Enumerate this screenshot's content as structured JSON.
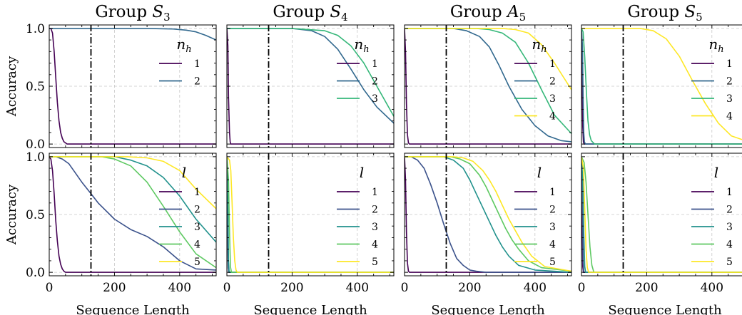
{
  "colors": {
    "c1": "#440154",
    "c2_of2": "#31688e",
    "c2": "#3b528b",
    "c3_of3": "#35b779",
    "c3": "#21918c",
    "c4": "#5ec962",
    "c5": "#fde725",
    "teal2": "#2f6e8f",
    "green3": "#3dbb74",
    "yellow4": "#fde725",
    "vline": "#000000",
    "grid": "#c8c8c8"
  },
  "vline_x": 128,
  "xlabel": "Sequence Length",
  "ylabel": "Accuracy",
  "chart_data": [
    {
      "type": "line",
      "title": "Group S",
      "title_sub": "3",
      "legend_title": "n",
      "legend_title_sub": "h",
      "xlim": [
        0,
        512
      ],
      "ylim": [
        -0.03,
        1.03
      ],
      "series": [
        {
          "name": "1",
          "color": "#440154",
          "x": [
            0,
            5,
            10,
            15,
            20,
            25,
            30,
            35,
            40,
            45,
            50,
            55,
            60,
            512
          ],
          "y": [
            1.0,
            1.0,
            0.96,
            0.8,
            0.58,
            0.36,
            0.2,
            0.1,
            0.05,
            0.02,
            0.01,
            0.0,
            0.0,
            0.0
          ]
        },
        {
          "name": "2",
          "color": "#31688e",
          "x": [
            0,
            100,
            200,
            300,
            380,
            420,
            450,
            480,
            512
          ],
          "y": [
            1.0,
            1.0,
            1.0,
            1.0,
            0.995,
            0.985,
            0.97,
            0.94,
            0.9
          ]
        }
      ]
    },
    {
      "type": "line",
      "title": "Group S",
      "title_sub": "4",
      "legend_title": "n",
      "legend_title_sub": "h",
      "xlim": [
        0,
        512
      ],
      "ylim": [
        -0.03,
        1.03
      ],
      "series": [
        {
          "name": "1",
          "color": "#440154",
          "x": [
            0,
            3,
            5,
            8,
            10,
            12,
            15,
            512
          ],
          "y": [
            1.0,
            0.85,
            0.4,
            0.1,
            0.02,
            0.0,
            0.0,
            0.0
          ]
        },
        {
          "name": "2",
          "color": "#31688e",
          "x": [
            0,
            200,
            260,
            300,
            340,
            380,
            420,
            460,
            512
          ],
          "y": [
            1.0,
            1.0,
            0.98,
            0.93,
            0.82,
            0.65,
            0.47,
            0.32,
            0.18
          ]
        },
        {
          "name": "3",
          "color": "#35b779",
          "x": [
            0,
            200,
            300,
            340,
            380,
            420,
            460,
            512
          ],
          "y": [
            1.0,
            1.0,
            0.98,
            0.94,
            0.85,
            0.7,
            0.5,
            0.24
          ]
        }
      ]
    },
    {
      "type": "line",
      "title": "Group A",
      "title_sub": "5",
      "legend_title": "n",
      "legend_title_sub": "h",
      "xlim": [
        0,
        512
      ],
      "ylim": [
        -0.03,
        1.03
      ],
      "series": [
        {
          "name": "1",
          "color": "#440154",
          "x": [
            0,
            3,
            6,
            9,
            12,
            15,
            512
          ],
          "y": [
            1.0,
            0.8,
            0.35,
            0.08,
            0.01,
            0.0,
            0.0
          ]
        },
        {
          "name": "2",
          "color": "#31688e",
          "x": [
            0,
            150,
            190,
            230,
            260,
            290,
            320,
            360,
            400,
            440,
            480,
            512
          ],
          "y": [
            1.0,
            1.0,
            0.98,
            0.93,
            0.84,
            0.68,
            0.5,
            0.3,
            0.16,
            0.07,
            0.03,
            0.02
          ]
        },
        {
          "name": "3",
          "color": "#35b779",
          "x": [
            0,
            220,
            260,
            300,
            340,
            380,
            420,
            460,
            512
          ],
          "y": [
            1.0,
            1.0,
            0.99,
            0.96,
            0.88,
            0.7,
            0.47,
            0.25,
            0.09
          ]
        },
        {
          "name": "4",
          "color": "#fde725",
          "x": [
            0,
            300,
            340,
            380,
            420,
            460,
            512
          ],
          "y": [
            1.0,
            1.0,
            0.99,
            0.96,
            0.86,
            0.7,
            0.47
          ]
        }
      ]
    },
    {
      "type": "line",
      "title": "Group S",
      "title_sub": "5",
      "legend_title": "n",
      "legend_title_sub": "h",
      "xlim": [
        0,
        512
      ],
      "ylim": [
        -0.03,
        1.03
      ],
      "series": [
        {
          "name": "1",
          "color": "#440154",
          "x": [
            0,
            2,
            4,
            6,
            8,
            10,
            512
          ],
          "y": [
            1.0,
            0.6,
            0.15,
            0.02,
            0.0,
            0.0,
            0.0
          ]
        },
        {
          "name": "2",
          "color": "#31688e",
          "x": [
            0,
            3,
            5,
            7,
            9,
            12,
            512
          ],
          "y": [
            1.0,
            0.85,
            0.4,
            0.1,
            0.02,
            0.0,
            0.0
          ]
        },
        {
          "name": "3",
          "color": "#35b779",
          "x": [
            0,
            5,
            10,
            15,
            20,
            25,
            30,
            40,
            512
          ],
          "y": [
            1.0,
            0.97,
            0.75,
            0.45,
            0.2,
            0.08,
            0.03,
            0.0,
            0.0
          ]
        },
        {
          "name": "4",
          "color": "#fde725",
          "x": [
            0,
            180,
            220,
            260,
            300,
            340,
            380,
            420,
            460,
            512
          ],
          "y": [
            1.0,
            1.0,
            0.98,
            0.91,
            0.76,
            0.55,
            0.35,
            0.18,
            0.07,
            0.02
          ]
        }
      ]
    },
    {
      "type": "line",
      "legend_title": "l",
      "xlim": [
        0,
        512
      ],
      "ylim": [
        -0.03,
        1.03
      ],
      "xticks": [
        0,
        200,
        400
      ],
      "series": [
        {
          "name": "1",
          "color": "#440154",
          "x": [
            0,
            5,
            10,
            15,
            20,
            25,
            30,
            35,
            40,
            45,
            50,
            55,
            60,
            512
          ],
          "y": [
            1.0,
            0.98,
            0.88,
            0.68,
            0.45,
            0.27,
            0.14,
            0.07,
            0.03,
            0.01,
            0.0,
            0.0,
            0.0,
            0.0
          ]
        },
        {
          "name": "2",
          "color": "#3b528b",
          "x": [
            0,
            20,
            40,
            60,
            80,
            100,
            128,
            150,
            200,
            250,
            300,
            350,
            400,
            450,
            512
          ],
          "y": [
            1.0,
            1.0,
            0.98,
            0.94,
            0.86,
            0.78,
            0.68,
            0.6,
            0.46,
            0.37,
            0.31,
            0.22,
            0.1,
            0.03,
            0.02
          ]
        },
        {
          "name": "3",
          "color": "#21918c",
          "x": [
            0,
            200,
            250,
            300,
            350,
            400,
            450,
            512
          ],
          "y": [
            1.0,
            1.0,
            0.97,
            0.92,
            0.82,
            0.66,
            0.46,
            0.26
          ]
        },
        {
          "name": "4",
          "color": "#5ec962",
          "x": [
            0,
            160,
            200,
            250,
            300,
            350,
            400,
            450,
            512
          ],
          "y": [
            1.0,
            1.0,
            0.98,
            0.92,
            0.78,
            0.57,
            0.35,
            0.16,
            0.04
          ]
        },
        {
          "name": "5",
          "color": "#fde725",
          "x": [
            0,
            240,
            300,
            350,
            400,
            450,
            512
          ],
          "y": [
            1.0,
            1.0,
            0.99,
            0.96,
            0.88,
            0.72,
            0.55
          ]
        }
      ]
    },
    {
      "type": "line",
      "legend_title": "l",
      "xlim": [
        0,
        512
      ],
      "ylim": [
        -0.03,
        1.03
      ],
      "xticks": [
        0,
        200,
        400
      ],
      "series": [
        {
          "name": "1",
          "color": "#440154",
          "x": [
            0,
            2,
            4,
            6,
            512
          ],
          "y": [
            1.0,
            0.5,
            0.05,
            0.0,
            0.0
          ]
        },
        {
          "name": "2",
          "color": "#3b528b",
          "x": [
            0,
            2,
            4,
            6,
            512
          ],
          "y": [
            1.0,
            0.6,
            0.05,
            0.0,
            0.0
          ]
        },
        {
          "name": "3",
          "color": "#21918c",
          "x": [
            0,
            3,
            5,
            7,
            512
          ],
          "y": [
            1.0,
            0.6,
            0.1,
            0.0,
            0.0
          ]
        },
        {
          "name": "4",
          "color": "#5ec962",
          "x": [
            0,
            5,
            8,
            11,
            14,
            512
          ],
          "y": [
            1.0,
            0.8,
            0.35,
            0.05,
            0.0,
            0.0
          ]
        },
        {
          "name": "5",
          "color": "#fde725",
          "x": [
            0,
            8,
            12,
            16,
            20,
            24,
            28,
            32,
            512
          ],
          "y": [
            1.0,
            0.97,
            0.88,
            0.6,
            0.3,
            0.1,
            0.02,
            0.0,
            0.0
          ]
        }
      ]
    },
    {
      "type": "line",
      "legend_title": "l",
      "xlim": [
        0,
        512
      ],
      "ylim": [
        -0.03,
        1.03
      ],
      "xticks": [
        0,
        200,
        400
      ],
      "series": [
        {
          "name": "1",
          "color": "#440154",
          "x": [
            0,
            3,
            6,
            9,
            12,
            15,
            512
          ],
          "y": [
            1.0,
            0.8,
            0.35,
            0.08,
            0.01,
            0.0,
            0.0
          ]
        },
        {
          "name": "2",
          "color": "#3b528b",
          "x": [
            0,
            20,
            40,
            60,
            80,
            100,
            120,
            140,
            160,
            180,
            200,
            220,
            250,
            512
          ],
          "y": [
            1.0,
            1.0,
            0.97,
            0.9,
            0.76,
            0.6,
            0.42,
            0.25,
            0.12,
            0.06,
            0.02,
            0.01,
            0.0,
            0.0
          ]
        },
        {
          "name": "3",
          "color": "#21918c",
          "x": [
            0,
            120,
            150,
            180,
            200,
            220,
            240,
            260,
            280,
            300,
            320,
            350,
            400,
            512
          ],
          "y": [
            1.0,
            1.0,
            0.97,
            0.9,
            0.8,
            0.68,
            0.56,
            0.44,
            0.32,
            0.22,
            0.14,
            0.06,
            0.02,
            0.0
          ]
        },
        {
          "name": "4",
          "color": "#5ec962",
          "x": [
            0,
            140,
            170,
            200,
            230,
            250,
            270,
            290,
            310,
            330,
            350,
            380,
            420,
            512
          ],
          "y": [
            1.0,
            1.0,
            0.98,
            0.94,
            0.84,
            0.74,
            0.62,
            0.5,
            0.38,
            0.28,
            0.2,
            0.1,
            0.04,
            0.01
          ]
        },
        {
          "name": "5",
          "color": "#fde725",
          "x": [
            0,
            150,
            180,
            210,
            240,
            260,
            280,
            300,
            320,
            340,
            360,
            390,
            430,
            512
          ],
          "y": [
            1.0,
            1.0,
            0.99,
            0.96,
            0.88,
            0.8,
            0.7,
            0.58,
            0.46,
            0.36,
            0.26,
            0.14,
            0.05,
            0.01
          ]
        }
      ]
    },
    {
      "type": "line",
      "legend_title": "l",
      "xlim": [
        0,
        512
      ],
      "ylim": [
        -0.03,
        1.03
      ],
      "xticks": [
        0,
        200,
        400
      ],
      "series": [
        {
          "name": "1",
          "color": "#440154",
          "x": [
            0,
            2,
            4,
            6,
            512
          ],
          "y": [
            1.0,
            0.5,
            0.05,
            0.0,
            0.0
          ]
        },
        {
          "name": "2",
          "color": "#3b528b",
          "x": [
            0,
            3,
            5,
            7,
            512
          ],
          "y": [
            1.0,
            0.6,
            0.1,
            0.0,
            0.0
          ]
        },
        {
          "name": "3",
          "color": "#21918c",
          "x": [
            0,
            4,
            7,
            10,
            13,
            512
          ],
          "y": [
            1.0,
            0.8,
            0.35,
            0.05,
            0.0,
            0.0
          ]
        },
        {
          "name": "4",
          "color": "#5ec962",
          "x": [
            0,
            8,
            14,
            20,
            26,
            32,
            38,
            512
          ],
          "y": [
            1.0,
            0.95,
            0.78,
            0.5,
            0.22,
            0.06,
            0.0,
            0.0
          ]
        },
        {
          "name": "5",
          "color": "#fde725",
          "x": [
            0,
            6,
            10,
            14,
            18,
            22,
            512
          ],
          "y": [
            1.0,
            0.9,
            0.55,
            0.2,
            0.04,
            0.0,
            0.0
          ]
        }
      ]
    }
  ],
  "yticks": [
    "0.0",
    "0.5",
    "1.0"
  ],
  "yticks_vals": [
    0.0,
    0.5,
    1.0
  ],
  "xticks": [
    "0",
    "200",
    "400"
  ],
  "xticks_vals": [
    0,
    200,
    400
  ]
}
